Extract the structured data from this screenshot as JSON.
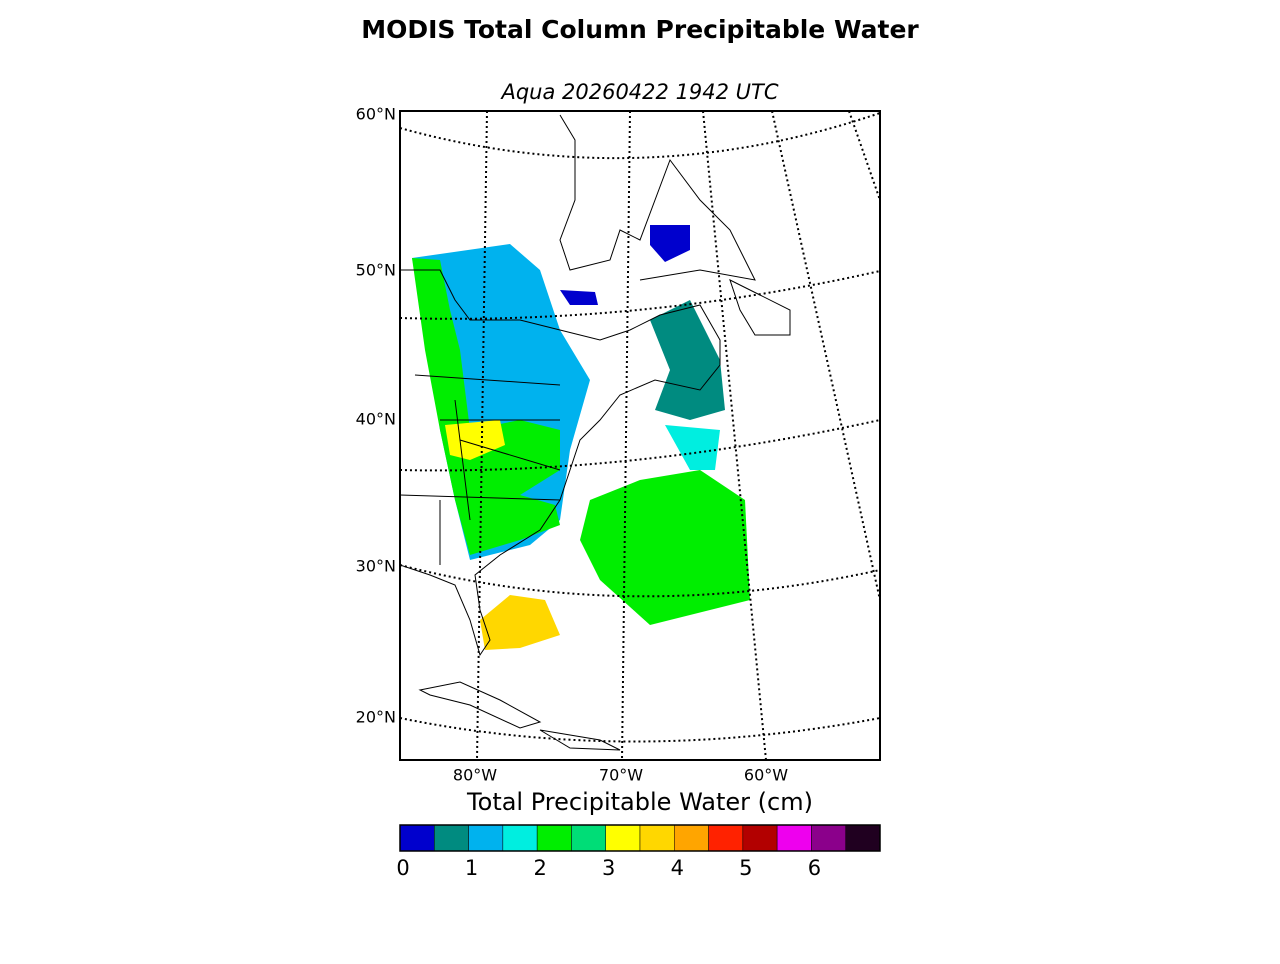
{
  "title": "MODIS Total Column Precipitable Water",
  "subtitle": "Aqua 20260422 1942 UTC",
  "map": {
    "lat_labels": [
      "60°N",
      "50°N",
      "40°N",
      "30°N",
      "20°N"
    ],
    "lon_labels": [
      "80°W",
      "70°W",
      "60°W"
    ]
  },
  "colorbar": {
    "label": "Total Precipitable Water (cm)",
    "lim": [
      0,
      7
    ],
    "ticks": [
      0,
      1,
      2,
      3,
      4,
      5,
      6
    ],
    "colors": [
      "#0000cd",
      "#008b80",
      "#00b2ee",
      "#00eee0",
      "#00ee00",
      "#00dd77",
      "#ffff00",
      "#ffd700",
      "#ffa500",
      "#ff2200",
      "#b20000",
      "#ee00ee",
      "#8b008b",
      "#200020"
    ]
  }
}
